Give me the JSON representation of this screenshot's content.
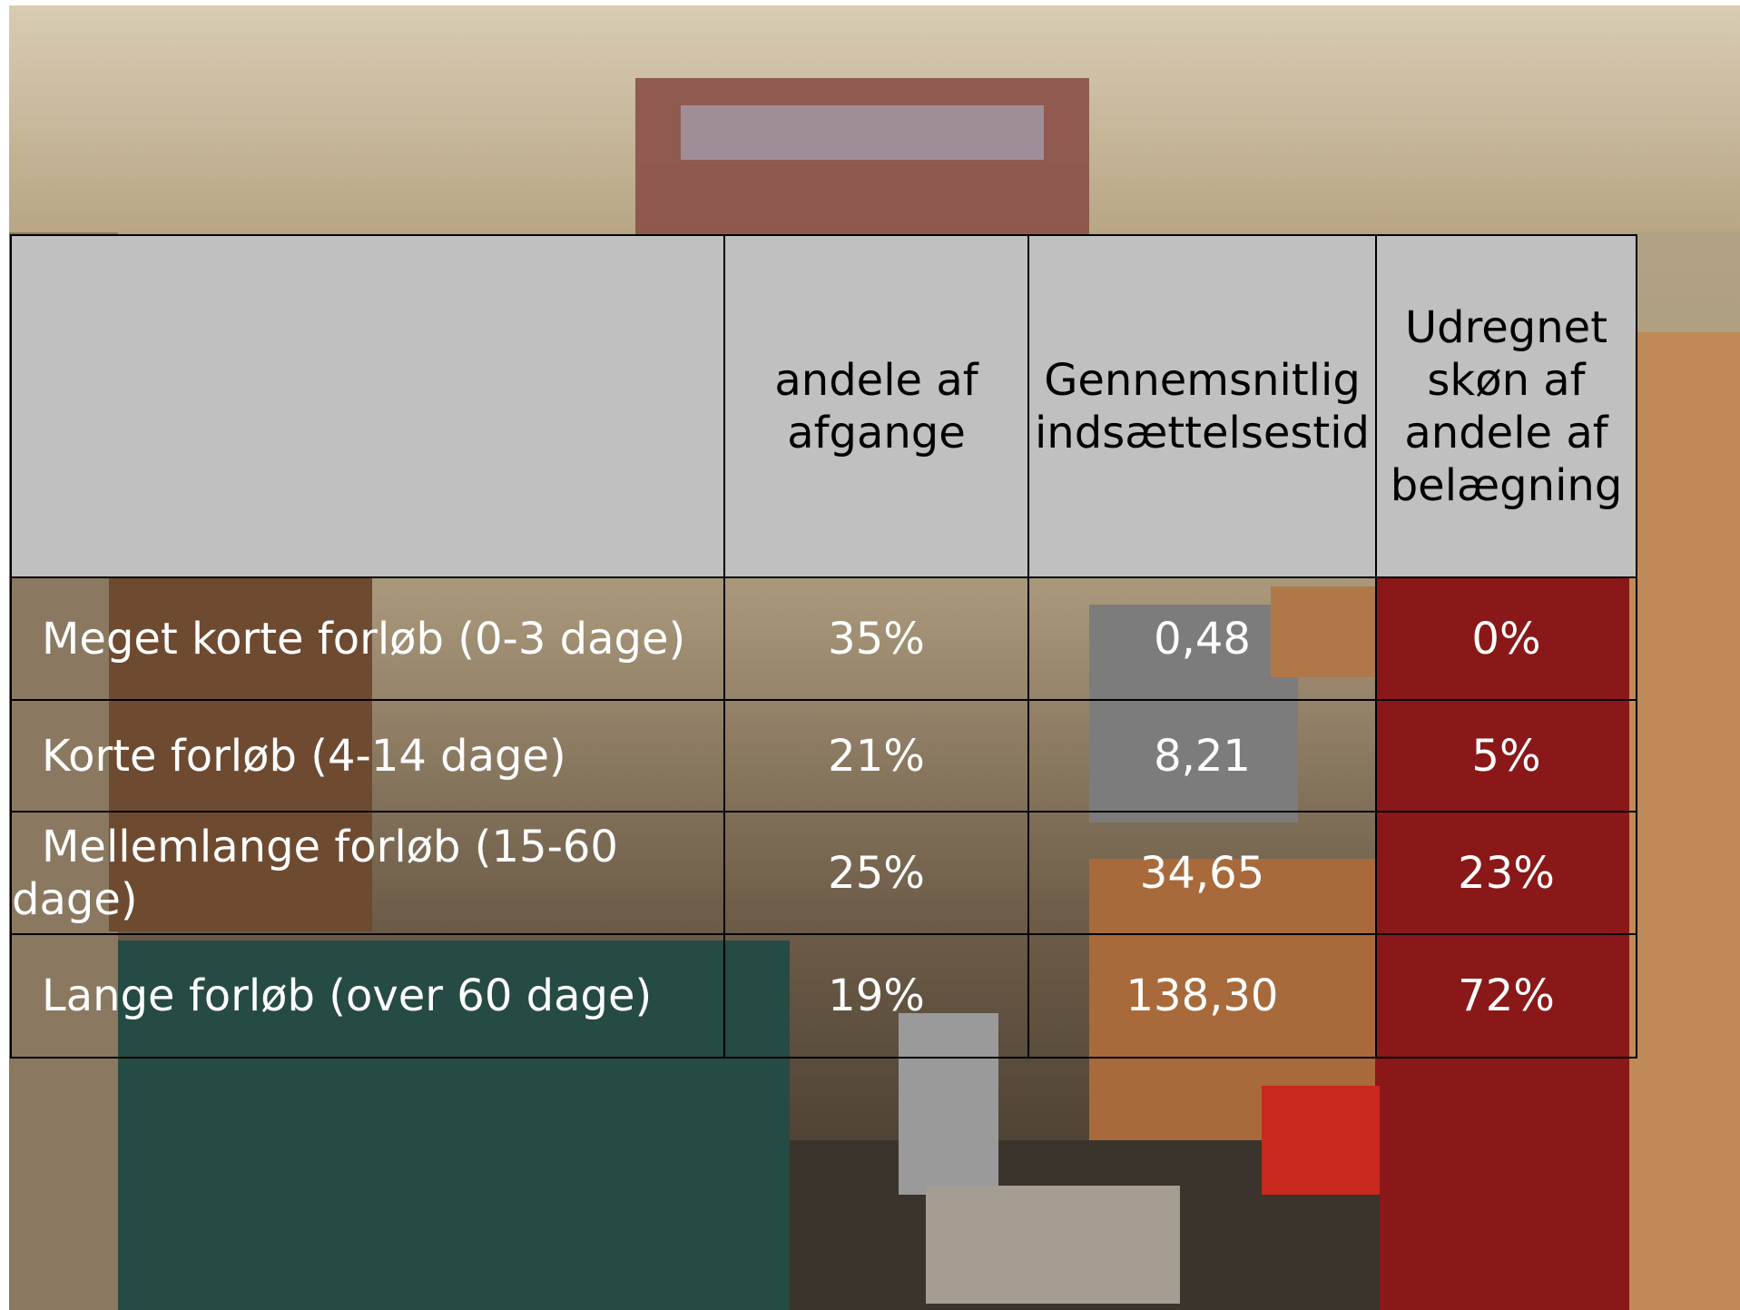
{
  "table": {
    "header": [
      "andele af afgange",
      "Gennemsnitlig indsættelsestid",
      "Udregnet skøn af andele af belægning"
    ],
    "rows": [
      [
        "Meget korte forløb (0-3 dage)",
        "35%",
        "0,48",
        "0%"
      ],
      [
        "Korte forløb (4-14 dage)",
        "21%",
        "8,21",
        "5%"
      ],
      [
        "Mellemlange forløb (15-60 dage)",
        "25%",
        "34,65",
        "23%"
      ],
      [
        "Lange forløb (over 60 dage)",
        "19%",
        "138,30",
        "72%"
      ]
    ]
  }
}
